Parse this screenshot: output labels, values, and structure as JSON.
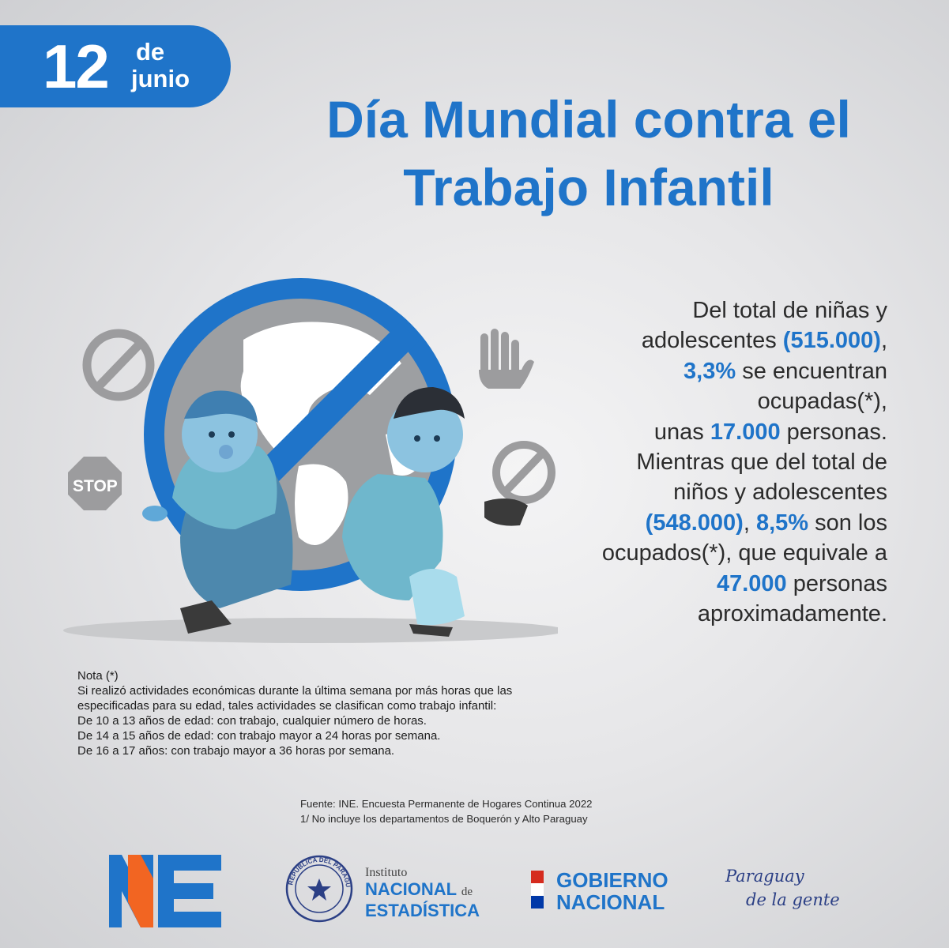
{
  "badge": {
    "day": "12",
    "de": "de",
    "month": "junio"
  },
  "title": {
    "line1": "Día Mundial contra el",
    "line2": "Trabajo Infantil"
  },
  "stats": {
    "p1": "Del total de niñas y",
    "p2": "adolescentes ",
    "v1": "(515.000)",
    "p3": ",",
    "v2": "3,3%",
    "p4": " se encuentran",
    "p5": "ocupadas(*),",
    "p6": "unas ",
    "v3": "17.000",
    "p7": " personas.",
    "p8": "Mientras que del total de",
    "p9": "niños y adolescentes",
    "v4": "(548.000)",
    "p10": ", ",
    "v5": "8,5%",
    "p11": " son los",
    "p12": "ocupados(*), que equivale a",
    "v6": "47.000",
    "p13": " personas",
    "p14": "aproximadamente."
  },
  "illustration": {
    "stop_sign": "STOP"
  },
  "note": {
    "heading": "Nota (*)",
    "lines": [
      "Si realizó actividades económicas durante la última semana por más horas que las",
      "especificadas para su edad, tales actividades se clasifican como trabajo infantil:",
      "De 10 a 13 años de edad: con trabajo, cualquier número de horas.",
      "De 14 a 15 años de edad: con trabajo mayor a 24 horas por semana.",
      "De 16 a 17 años: con trabajo mayor a 36 horas por semana."
    ]
  },
  "source": {
    "line1": "Fuente: INE. Encuesta Permanente de Hogares Continua 2022",
    "line2": "1/ No incluye los departamentos de Boquerón y Alto Paraguay"
  },
  "logos": {
    "ine": "NE",
    "seal_text": "REPÚBLICA DEL PARAGUAY",
    "inst_small": "Instituto",
    "inst_nacional": "NACIONAL",
    "inst_de": "de",
    "inst_estadistica": "ESTADÍSTICA",
    "gob_line1": "GOBIERNO",
    "gob_line2": "NACIONAL",
    "pdlg_line1": "Paraguay",
    "pdlg_line2": "de la gente"
  },
  "colors": {
    "brand_blue": "#1f74c9",
    "ine_orange": "#f26522",
    "flag_red": "#d52b1e",
    "flag_blue": "#0038a8"
  }
}
